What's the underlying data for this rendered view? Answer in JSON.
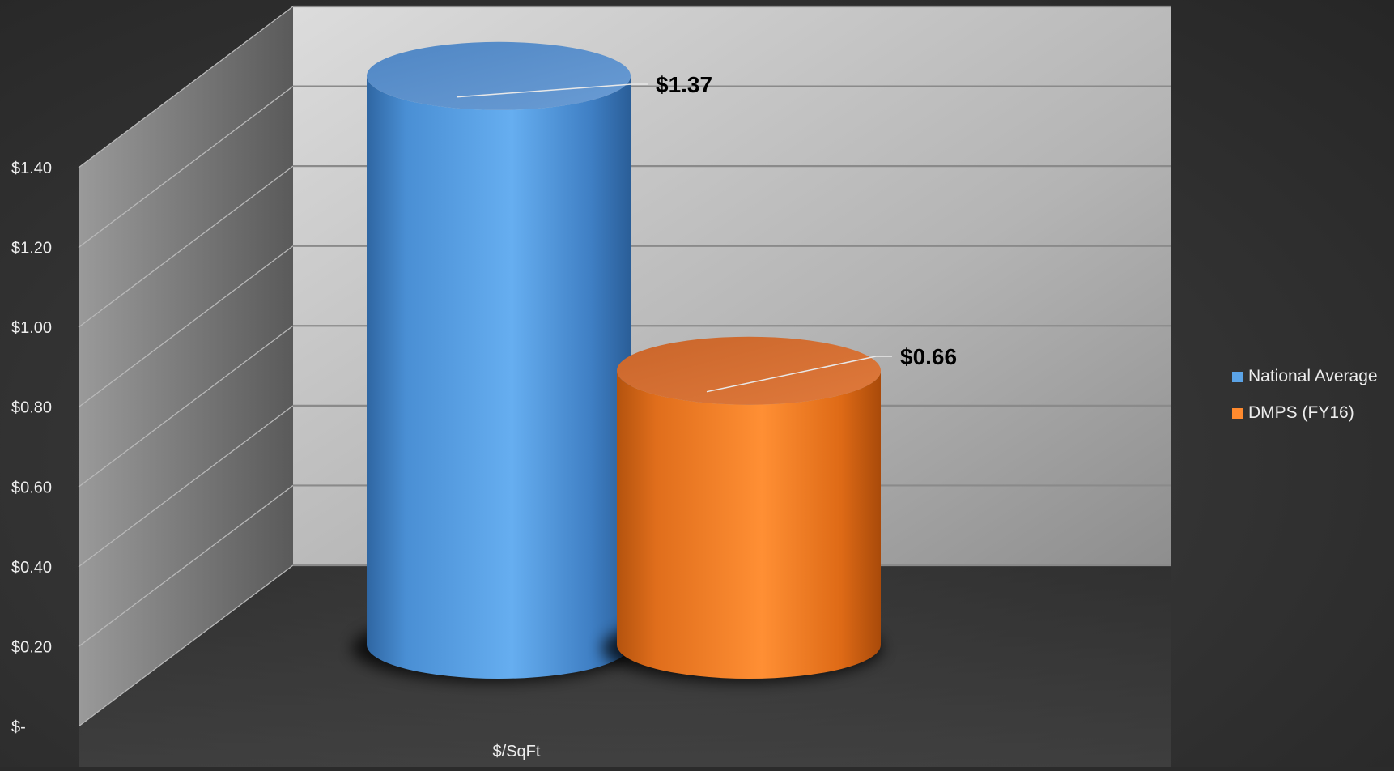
{
  "chart_data": {
    "type": "bar",
    "style": "3d-cylinder",
    "categories": [
      "$/SqFt"
    ],
    "series": [
      {
        "name": "National Average",
        "values": [
          1.37
        ],
        "label": "$1.37",
        "color": "#5ba3e6"
      },
      {
        "name": "DMPS (FY16)",
        "values": [
          0.66
        ],
        "label": "$0.66",
        "color": "#ff8a2e"
      }
    ],
    "ylim": [
      0,
      1.4
    ],
    "yticks": [
      0,
      0.2,
      0.4,
      0.6,
      0.8,
      1.0,
      1.2,
      1.4
    ],
    "ytick_labels": [
      "$-",
      "$0.20",
      "$0.40",
      "$0.60",
      "$0.80",
      "$1.00",
      "$1.20",
      "$1.40"
    ],
    "grid": true,
    "legend_position": "right",
    "title": "",
    "xlabel": "",
    "ylabel": ""
  }
}
